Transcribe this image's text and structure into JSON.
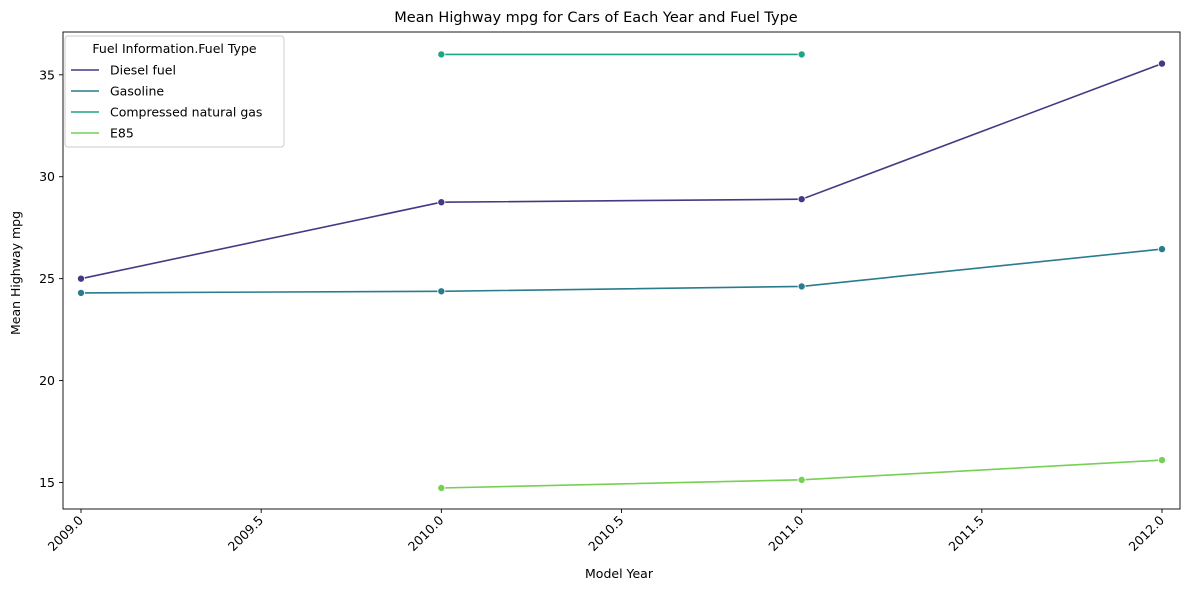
{
  "chart_data": {
    "type": "line",
    "title": "Mean Highway mpg for Cars of Each Year and Fuel Type",
    "xlabel": "Model Year",
    "ylabel": "Mean Highway mpg",
    "xlim": [
      2008.95,
      2012.05
    ],
    "ylim": [
      13.7,
      37.1
    ],
    "x_ticks": [
      "2009.0",
      "2009.5",
      "2010.0",
      "2010.5",
      "2011.0",
      "2011.5",
      "2012.0"
    ],
    "x_tick_values": [
      2009.0,
      2009.5,
      2010.0,
      2010.5,
      2011.0,
      2011.5,
      2012.0
    ],
    "y_ticks": [
      "15",
      "20",
      "25",
      "30",
      "35"
    ],
    "y_tick_values": [
      15,
      20,
      25,
      30,
      35
    ],
    "grid": false,
    "legend": {
      "title": "Fuel Information.Fuel Type",
      "position": "top-left"
    },
    "series": [
      {
        "name": "Diesel fuel",
        "color": "#443983",
        "x": [
          2009,
          2010,
          2011,
          2012
        ],
        "y": [
          25.0,
          28.75,
          28.9,
          35.55
        ]
      },
      {
        "name": "Gasoline",
        "color": "#287c8e",
        "x": [
          2009,
          2010,
          2011,
          2012
        ],
        "y": [
          24.3,
          24.38,
          24.62,
          26.45
        ]
      },
      {
        "name": "Compressed natural gas",
        "color": "#20a486",
        "x": [
          2010,
          2011
        ],
        "y": [
          36.0,
          36.0
        ]
      },
      {
        "name": "E85",
        "color": "#75d054",
        "x": [
          2010,
          2011,
          2012
        ],
        "y": [
          14.73,
          15.13,
          16.1
        ]
      }
    ]
  }
}
